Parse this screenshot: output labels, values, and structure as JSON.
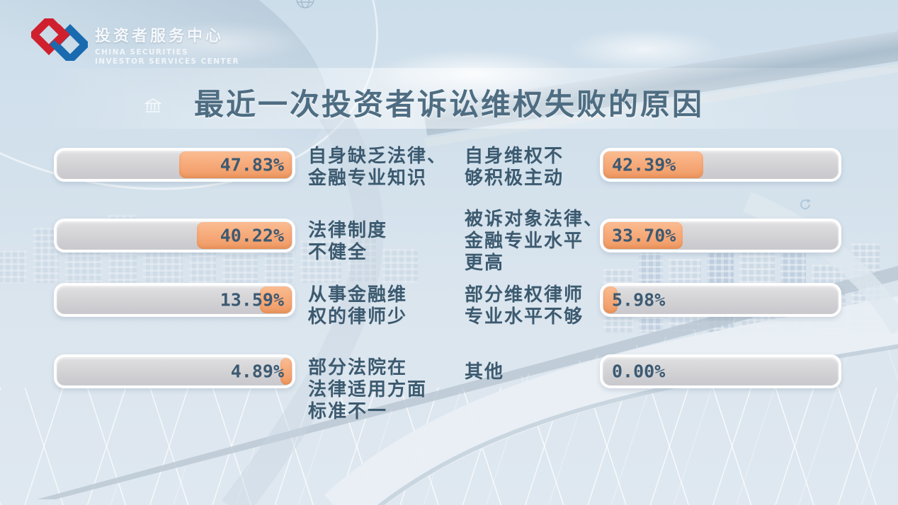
{
  "header": {
    "org_name_cn": "投资者服务中心",
    "org_name_en_line1": "CHINA SECURITIES",
    "org_name_en_line2": "INVESTOR SERVICES CENTER"
  },
  "title": "最近一次投资者诉讼维权失败的原因",
  "chart_data": {
    "type": "bar",
    "orientation": "horizontal",
    "title": "最近一次投资者诉讼维权失败的原因",
    "value_unit": "%",
    "axis_range": [
      0,
      100
    ],
    "layout": "two mirrored bar columns; left bars fill from the right edge, right bars fill from the left edge; category labels sit in the middle; gridless decorative infographic",
    "items": [
      {
        "row": 1,
        "column": "left",
        "label": "自身缺乏法律、\n金融专业知识",
        "value": 47.83,
        "display": "47.83%"
      },
      {
        "row": 1,
        "column": "right",
        "label": "自身维权不\n够积极主动",
        "value": 42.39,
        "display": "42.39%"
      },
      {
        "row": 2,
        "column": "left",
        "label": "法律制度\n不健全",
        "value": 40.22,
        "display": "40.22%"
      },
      {
        "row": 2,
        "column": "right",
        "label": "被诉对象法律、\n金融专业水平\n更高",
        "value": 33.7,
        "display": "33.70%"
      },
      {
        "row": 3,
        "column": "left",
        "label": "从事金融维\n权的律师少",
        "value": 13.59,
        "display": "13.59%"
      },
      {
        "row": 3,
        "column": "right",
        "label": "部分维权律师\n专业水平不够",
        "value": 5.98,
        "display": "5.98%"
      },
      {
        "row": 4,
        "column": "left",
        "label": "部分法院在\n法律适用方面\n标准不一",
        "value": 4.89,
        "display": "4.89%"
      },
      {
        "row": 4,
        "column": "right",
        "label": "其他",
        "value": 0.0,
        "display": "0.00%"
      }
    ]
  },
  "colors": {
    "bar_fill_orange": "#f6a877",
    "bar_track_gray": "#d2d2d5",
    "bar_border": "#ffffff",
    "value_text": "#3c5a72",
    "label_text": "#3c5a6f",
    "title_text": "#4e6d82",
    "logo_red": "#d0202e",
    "logo_blue": "#1a6ab0",
    "sky": "#cddeeb",
    "floor_dark_wedge": "#7f94a4"
  },
  "icons": {
    "logo_icon": "interlocked red-blue chain links",
    "bank_icon": "small white building outline",
    "globe_icon": "wireframe globe, clipped at top edge",
    "refresh_icon": "circular sync arrows"
  }
}
